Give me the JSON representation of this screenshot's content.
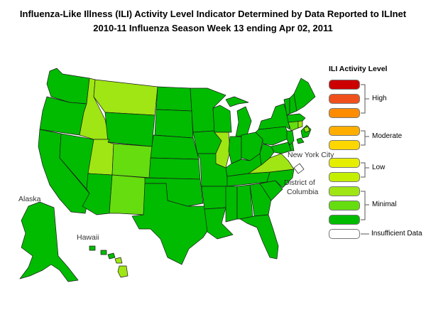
{
  "header": {
    "title": "Influenza-Like Illness (ILI) Activity Level Indicator Determined by Data Reported to ILInet",
    "subtitle": "2010-11  Influenza Season Week  13 ending Apr 02, 2011"
  },
  "legend": {
    "title": "ILI Activity Level",
    "swatches": [
      {
        "level": 10,
        "color": "#cc0000"
      },
      {
        "level": 9,
        "color": "#f0501c"
      },
      {
        "level": 8,
        "color": "#ff8c00"
      },
      {
        "level": 7,
        "color": "#ffae00"
      },
      {
        "level": 6,
        "color": "#ffd700"
      },
      {
        "level": 5,
        "color": "#e6ee00"
      },
      {
        "level": 4,
        "color": "#c4ef00"
      },
      {
        "level": 3,
        "color": "#9fe614"
      },
      {
        "level": 2,
        "color": "#66dd0f"
      },
      {
        "level": 1,
        "color": "#00bb00"
      },
      {
        "level": 0,
        "color": "#ffffff"
      }
    ],
    "groups": {
      "high": "High",
      "moderate": "Moderate",
      "low": "Low",
      "minimal": "Minimal",
      "insufficient": "Insufficient Data"
    }
  },
  "map_labels": {
    "new_york_city": "New York City",
    "dc_line1": "District of",
    "dc_line2": "Columbia",
    "alaska": "Alaska",
    "hawaii": "Hawaii"
  },
  "colors": {
    "minimal_1": "#00bb00",
    "minimal_2": "#66dd0f",
    "minimal_3": "#9fe614",
    "border": "#1a1a1a"
  },
  "states": {
    "minimal_level_1": [
      "WA",
      "OR",
      "CA",
      "NV",
      "AZ",
      "WY",
      "ND",
      "SD",
      "NE",
      "KS",
      "OK",
      "TX",
      "MN",
      "IA",
      "MO",
      "AR",
      "LA",
      "WI",
      "MI",
      "IN",
      "OH",
      "KY",
      "TN",
      "MS",
      "AL",
      "GA",
      "FL",
      "SC",
      "NC",
      "WV",
      "PA",
      "NY",
      "VT",
      "NH",
      "ME",
      "MA",
      "NJ",
      "DE",
      "MD",
      "AK",
      "HI-Oahu"
    ],
    "minimal_level_2": [
      "CO",
      "NM",
      "CT"
    ],
    "minimal_level_3": [
      "ID",
      "MT",
      "UT",
      "IL",
      "VA",
      "RI",
      "HI-Hawaii",
      "HI-Maui"
    ]
  }
}
